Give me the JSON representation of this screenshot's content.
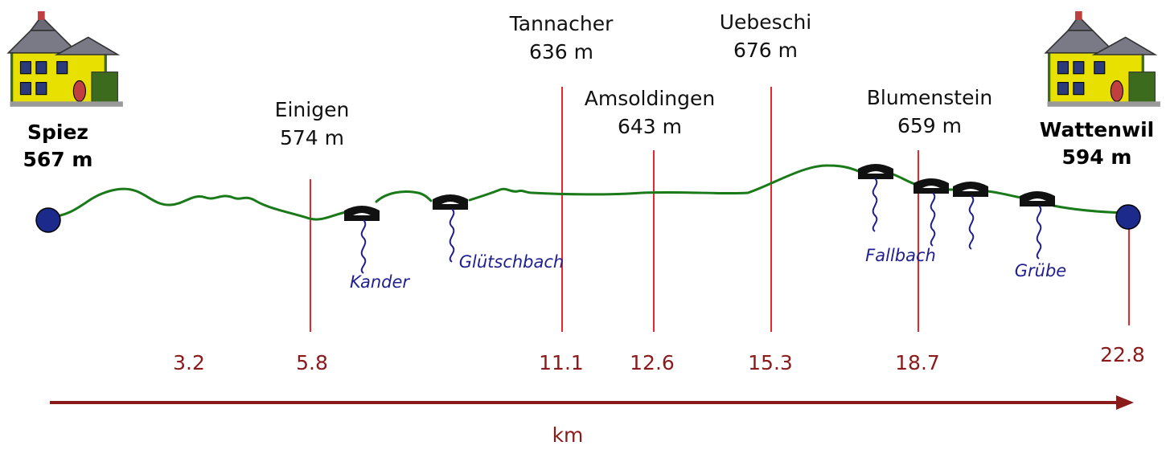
{
  "start": {
    "name": "Spiez",
    "elevation": "567 m"
  },
  "end": {
    "name": "Wattenwil",
    "elevation": "594 m"
  },
  "waypoints": [
    {
      "name": "Einigen",
      "elevation": "574 m",
      "km": "5.8"
    },
    {
      "name": "Tannacher",
      "elevation": "636 m",
      "km": "11.1"
    },
    {
      "name": "Amsoldingen",
      "elevation": "643 m",
      "km": "12.6"
    },
    {
      "name": "Uebeschi",
      "elevation": "676 m",
      "km": "15.3"
    },
    {
      "name": "Blumenstein",
      "elevation": "659 m",
      "km": "18.7"
    }
  ],
  "km_marks": [
    "3.2",
    "22.8"
  ],
  "streams": [
    "Kander",
    "Glütschbach",
    "Fallbach",
    "Grübe"
  ],
  "axis_label": "km",
  "colors": {
    "route": "#1a7a1a",
    "marker_lines": "#e8262b",
    "km_text": "#8b1a1a",
    "axis_arrow": "#8b1a1a",
    "stream_text": "#1f1f8f",
    "endpoint_fill": "#1c2a8c"
  },
  "icons": [
    "house-icon",
    "bridge-icon",
    "stream-wave-icon",
    "endpoint-dot-icon"
  ]
}
